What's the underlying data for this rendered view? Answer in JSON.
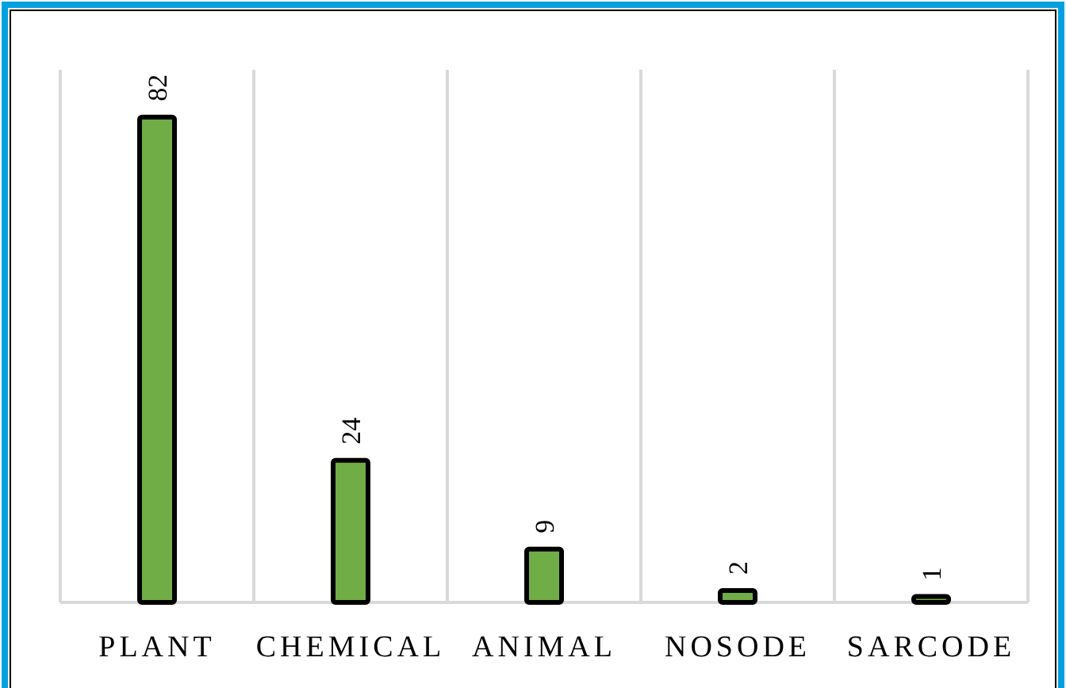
{
  "chart_data": {
    "type": "bar",
    "categories": [
      "PLANT",
      "CHEMICAL",
      "ANIMAL",
      "NOSODE",
      "SARCODE"
    ],
    "values": [
      82,
      24,
      9,
      2,
      1
    ],
    "color": "#70ad47",
    "ylim": [
      0,
      90
    ],
    "data_labels": true,
    "grid": "x",
    "tick_labels": "x"
  }
}
